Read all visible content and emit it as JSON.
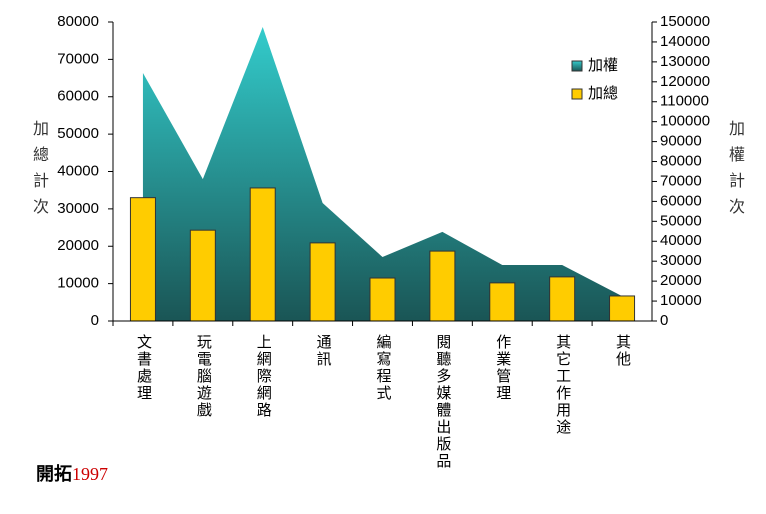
{
  "chart_data": {
    "type": "bar-area",
    "categories": [
      "文書處理",
      "玩電腦遊戲",
      "上網際網路",
      "通訊",
      "編寫程式",
      "閱聽多媒體出版品",
      "作業管理",
      "其它工作用途",
      "其他"
    ],
    "series": [
      {
        "name": "加權",
        "type": "area",
        "axis": "y2",
        "color": "#33cccc",
        "values": [
          124400,
          71200,
          147500,
          59200,
          32100,
          44700,
          28100,
          28100,
          12500
        ]
      },
      {
        "name": "加總",
        "type": "bar",
        "axis": "y",
        "color": "#ffcc00",
        "values": [
          33000,
          24300,
          35600,
          20900,
          11500,
          18700,
          10200,
          11800,
          6700
        ]
      }
    ],
    "ylabel": "加總計次",
    "y2label": "加權計次",
    "ylim": [
      0,
      80000
    ],
    "yticks": [
      0,
      10000,
      20000,
      30000,
      40000,
      50000,
      60000,
      70000,
      80000
    ],
    "y2lim": [
      0,
      150000
    ],
    "y2ticks": [
      0,
      10000,
      20000,
      30000,
      40000,
      50000,
      60000,
      70000,
      80000,
      90000,
      100000,
      110000,
      120000,
      130000,
      140000,
      150000
    ],
    "legend": "upper-right",
    "grid": false,
    "annotations": [
      "開拓",
      "1997"
    ]
  }
}
